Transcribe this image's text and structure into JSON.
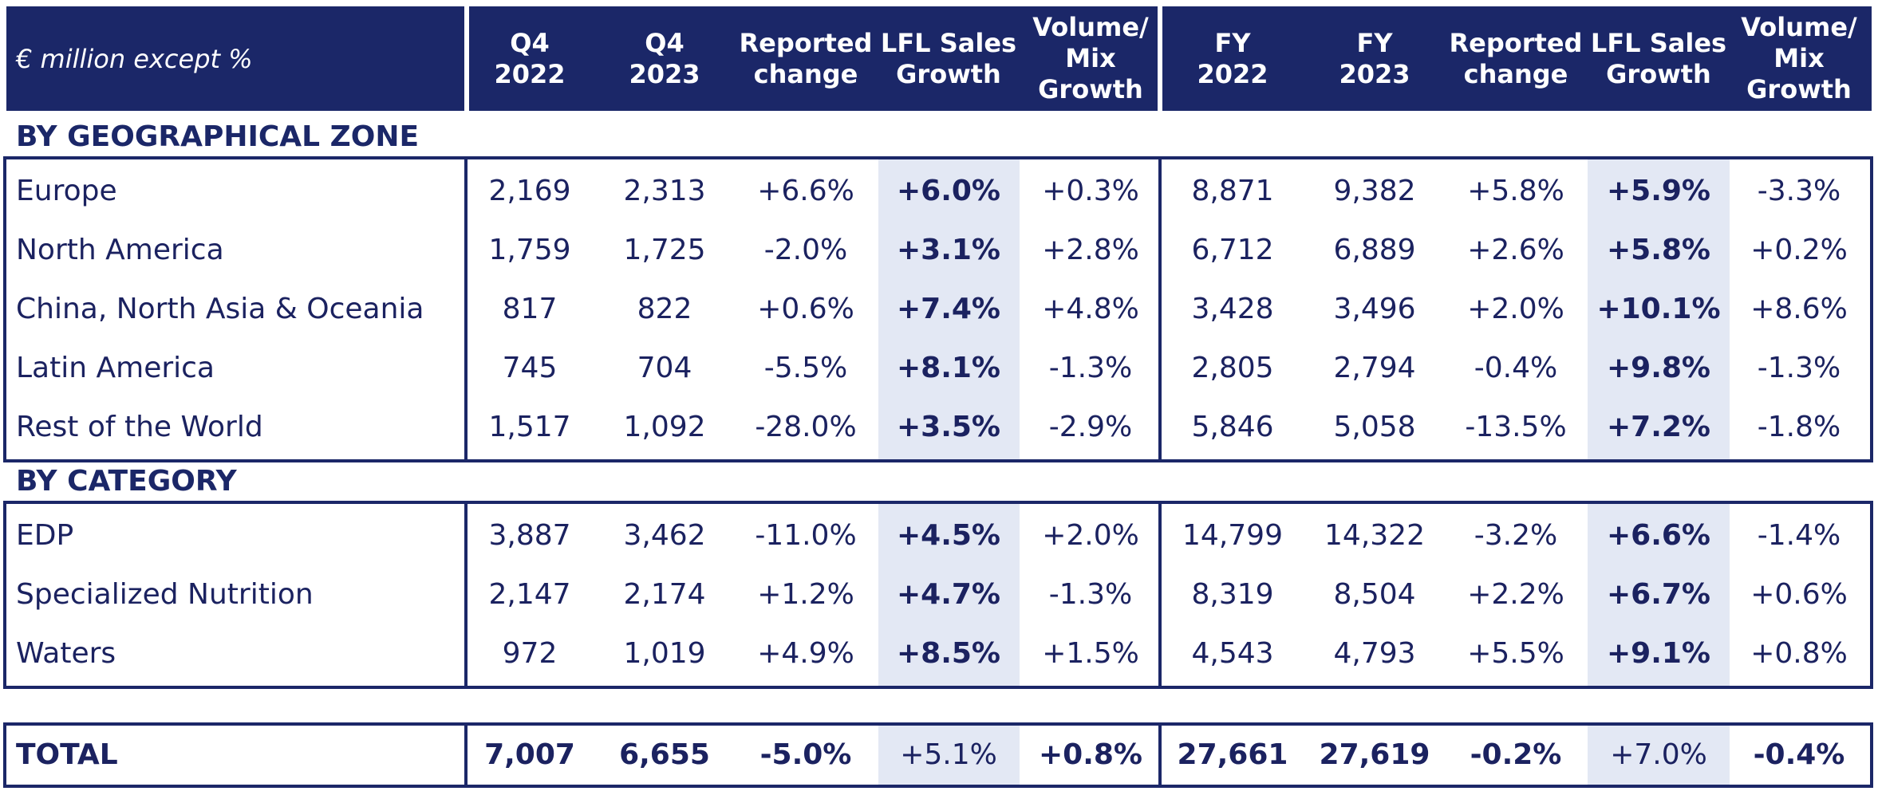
{
  "header": {
    "label": "€ million except %",
    "columns": [
      "Q4\n2022",
      "Q4\n2023",
      "Reported\nchange",
      "LFL Sales\nGrowth",
      "Volume/\nMix\nGrowth",
      "FY\n2022",
      "FY\n2023",
      "Reported\nchange",
      "LFL Sales\nGrowth",
      "Volume/\nMix\nGrowth"
    ]
  },
  "sections": [
    {
      "title": "BY GEOGRAPHICAL ZONE",
      "rows": [
        {
          "label": "Europe",
          "values": [
            "2,169",
            "2,313",
            "+6.6%",
            "+6.0%",
            "+0.3%",
            "8,871",
            "9,382",
            "+5.8%",
            "+5.9%",
            "-3.3%"
          ]
        },
        {
          "label": "North America",
          "values": [
            "1,759",
            "1,725",
            "-2.0%",
            "+3.1%",
            "+2.8%",
            "6,712",
            "6,889",
            "+2.6%",
            "+5.8%",
            "+0.2%"
          ]
        },
        {
          "label": "China, North Asia & Oceania",
          "values": [
            "817",
            "822",
            "+0.6%",
            "+7.4%",
            "+4.8%",
            "3,428",
            "3,496",
            "+2.0%",
            "+10.1%",
            "+8.6%"
          ]
        },
        {
          "label": "Latin America",
          "values": [
            "745",
            "704",
            "-5.5%",
            "+8.1%",
            "-1.3%",
            "2,805",
            "2,794",
            "-0.4%",
            "+9.8%",
            "-1.3%"
          ]
        },
        {
          "label": "Rest of the World",
          "values": [
            "1,517",
            "1,092",
            "-28.0%",
            "+3.5%",
            "-2.9%",
            "5,846",
            "5,058",
            "-13.5%",
            "+7.2%",
            "-1.8%"
          ]
        }
      ]
    },
    {
      "title": "BY CATEGORY",
      "rows": [
        {
          "label": "EDP",
          "values": [
            "3,887",
            "3,462",
            "-11.0%",
            "+4.5%",
            "+2.0%",
            "14,799",
            "14,322",
            "-3.2%",
            "+6.6%",
            "-1.4%"
          ]
        },
        {
          "label": "Specialized Nutrition",
          "values": [
            "2,147",
            "2,174",
            "+1.2%",
            "+4.7%",
            "-1.3%",
            "8,319",
            "8,504",
            "+2.2%",
            "+6.7%",
            "+0.6%"
          ]
        },
        {
          "label": "Waters",
          "values": [
            "972",
            "1,019",
            "+4.9%",
            "+8.5%",
            "+1.5%",
            "4,543",
            "4,793",
            "+5.5%",
            "+9.1%",
            "+0.8%"
          ]
        }
      ]
    }
  ],
  "total": {
    "label": "TOTAL",
    "values": [
      "7,007",
      "6,655",
      "-5.0%",
      "+5.1%",
      "+0.8%",
      "27,661",
      "27,619",
      "-0.2%",
      "+7.0%",
      "-0.4%"
    ]
  },
  "colors": {
    "navy": "#1b2768",
    "shade": "#e3e8f4"
  }
}
